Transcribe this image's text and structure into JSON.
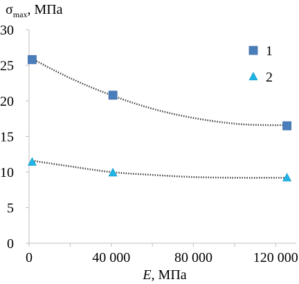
{
  "chart_data": {
    "type": "scatter",
    "ylabel": {
      "main": "σ",
      "sub": "max",
      "unit": ", МПа"
    },
    "xlabel": {
      "main": "E",
      "unit": ", МПа"
    },
    "xlim": [
      0,
      130000
    ],
    "ylim": [
      0,
      30
    ],
    "xticks": [
      0,
      40000,
      80000,
      120000
    ],
    "xtick_labels": [
      "0",
      "40 000",
      "80 000",
      "120 000"
    ],
    "yticks": [
      0,
      5,
      10,
      15,
      20,
      25,
      30
    ],
    "ytick_labels": [
      "0",
      "5",
      "10",
      "15",
      "20",
      "25",
      "30"
    ],
    "grid": false,
    "legend_position": "right",
    "trendline": "polynomial, dotted",
    "series": [
      {
        "name": "1",
        "marker": "square",
        "color": "#4a7ebb",
        "x": [
          1500,
          40800,
          125500
        ],
        "y": [
          25.8,
          20.8,
          16.5
        ],
        "trend_x": [
          1500,
          20000,
          40000,
          60000,
          80000,
          100000,
          115000,
          125500
        ],
        "trend_y": [
          25.9,
          23.2,
          20.8,
          18.9,
          17.6,
          16.8,
          16.6,
          16.6
        ]
      },
      {
        "name": "2",
        "marker": "triangle",
        "color": "#1fb4e6",
        "x": [
          1500,
          40800,
          125500
        ],
        "y": [
          11.4,
          9.9,
          9.2
        ],
        "trend_x": [
          1500,
          20000,
          40000,
          60000,
          80000,
          100000,
          125500
        ],
        "trend_y": [
          11.6,
          10.8,
          10.0,
          9.6,
          9.3,
          9.2,
          9.2
        ]
      }
    ]
  }
}
